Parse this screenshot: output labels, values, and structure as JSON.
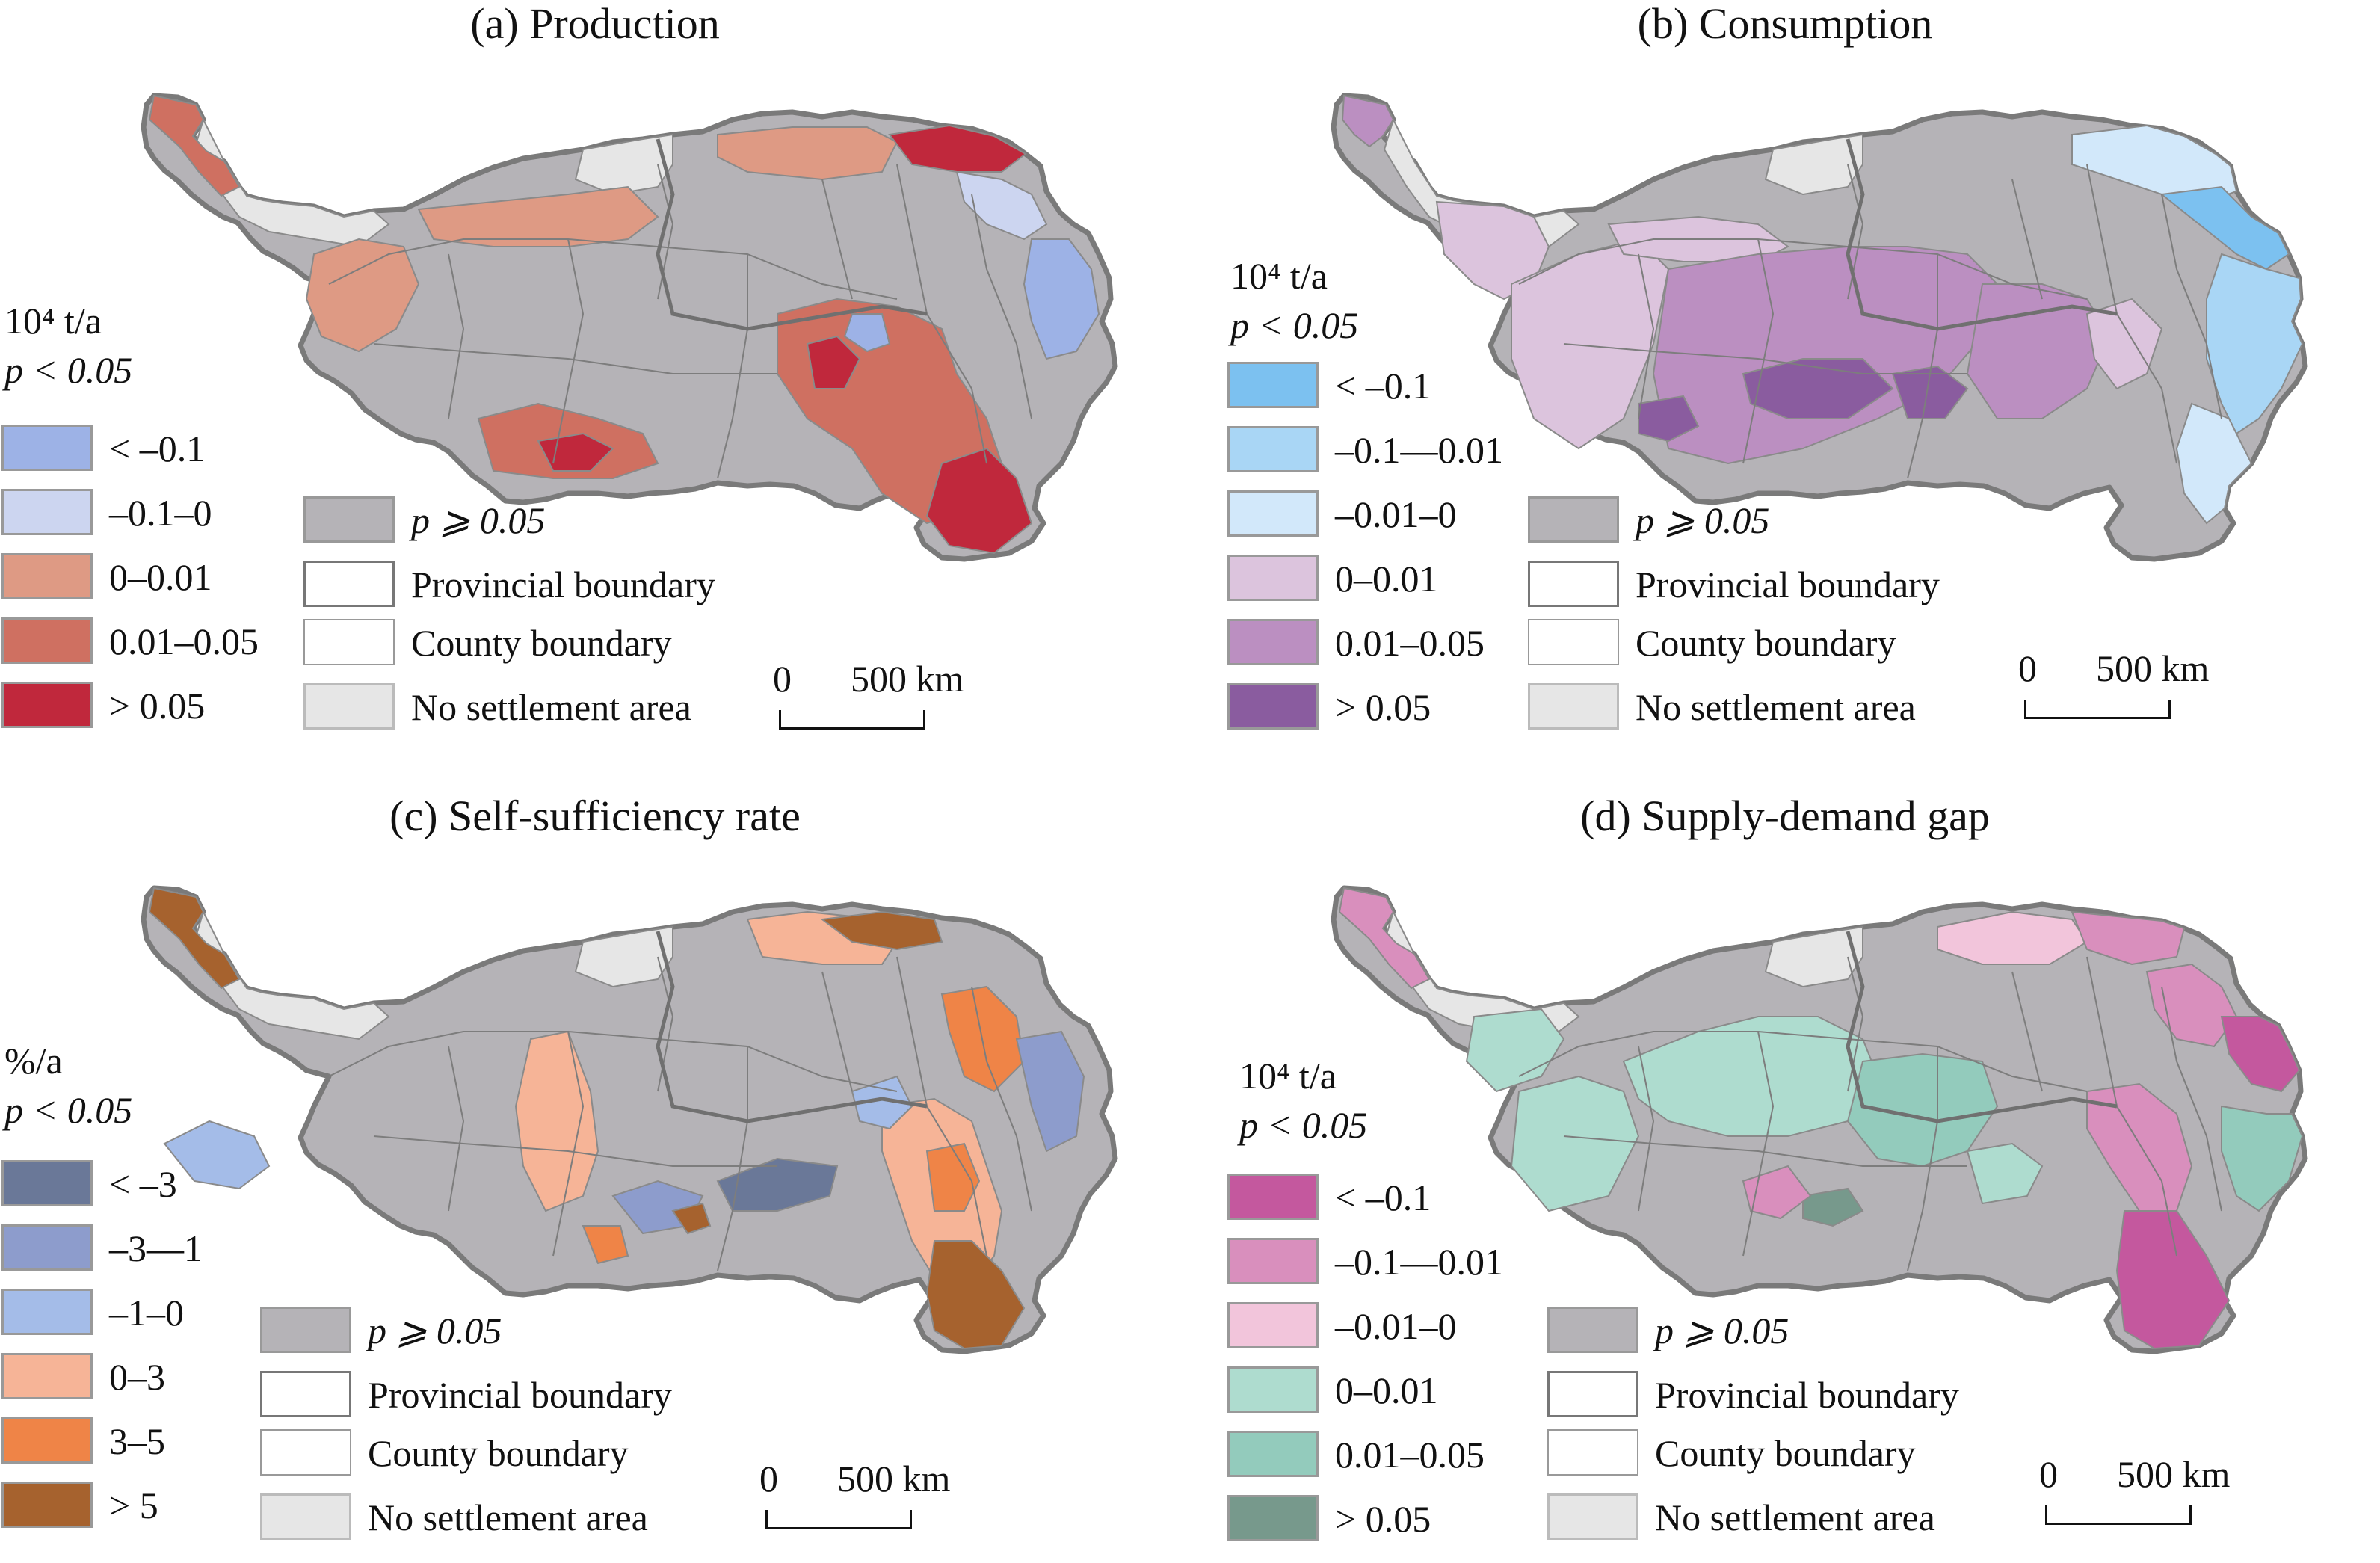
{
  "colors": {
    "not_significant": "#b5b3b7",
    "no_settlement": "#e6e6e6",
    "boundary": "#7a7a7a"
  },
  "scalebar": {
    "zero": "0",
    "distance": "500 km"
  },
  "panels": [
    {
      "title": "(a) Production",
      "unit": "10⁴ t/a",
      "significance": "p < 0.05",
      "classes": [
        {
          "label": "< –0.1",
          "color": "#9db2e6"
        },
        {
          "label": "–0.1–0",
          "color": "#ccd5f0"
        },
        {
          "label": "0–0.01",
          "color": "#de9a84"
        },
        {
          "label": "0.01–0.05",
          "color": "#cf7061"
        },
        {
          "label": "> 0.05",
          "color": "#c0283c"
        }
      ],
      "other_legend": [
        {
          "label": "p ⩾ 0.05",
          "kind": "not_significant"
        },
        {
          "label": "Provincial boundary",
          "kind": "provincial"
        },
        {
          "label": "County boundary",
          "kind": "county"
        },
        {
          "label": "No settlement area",
          "kind": "no_settlement"
        }
      ]
    },
    {
      "title": "(b) Consumption",
      "unit": "10⁴ t/a",
      "significance": "p < 0.05",
      "classes": [
        {
          "label": "< –0.1",
          "color": "#7cc1f0"
        },
        {
          "label": "–0.1––0.01",
          "color": "#a9d6f5"
        },
        {
          "label": "–0.01–0",
          "color": "#d2e8fa"
        },
        {
          "label": "0–0.01",
          "color": "#dcc4dd"
        },
        {
          "label": "0.01–0.05",
          "color": "#bb8fc1"
        },
        {
          "label": "> 0.05",
          "color": "#8a5c9f"
        }
      ],
      "other_legend": [
        {
          "label": "p ⩾ 0.05",
          "kind": "not_significant"
        },
        {
          "label": "Provincial boundary",
          "kind": "provincial"
        },
        {
          "label": "County boundary",
          "kind": "county"
        },
        {
          "label": "No settlement area",
          "kind": "no_settlement"
        }
      ]
    },
    {
      "title": "(c) Self-sufficiency rate",
      "unit": "%/a",
      "significance": "p < 0.05",
      "classes": [
        {
          "label": "< –3",
          "color": "#6a7898"
        },
        {
          "label": "–3––1",
          "color": "#8d9ccc"
        },
        {
          "label": "–1–0",
          "color": "#a4bce8"
        },
        {
          "label": "0–3",
          "color": "#f6b497"
        },
        {
          "label": "3–5",
          "color": "#ef8447"
        },
        {
          "label": "> 5",
          "color": "#a6622e"
        }
      ],
      "other_legend": [
        {
          "label": "p ⩾ 0.05",
          "kind": "not_significant"
        },
        {
          "label": "Provincial boundary",
          "kind": "provincial"
        },
        {
          "label": "County boundary",
          "kind": "county"
        },
        {
          "label": "No settlement area",
          "kind": "no_settlement"
        }
      ]
    },
    {
      "title": "(d) Supply-demand gap",
      "unit": "10⁴ t/a",
      "significance": "p < 0.05",
      "classes": [
        {
          "label": "< –0.1",
          "color": "#c4589e"
        },
        {
          "label": "–0.1––0.01",
          "color": "#d98fbd"
        },
        {
          "label": "–0.01–0",
          "color": "#f2c5db"
        },
        {
          "label": "0–0.01",
          "color": "#aedccf"
        },
        {
          "label": "0.01–0.05",
          "color": "#93cbbc"
        },
        {
          "label": "> 0.05",
          "color": "#77998c"
        }
      ],
      "other_legend": [
        {
          "label": "p ⩾ 0.05",
          "kind": "not_significant"
        },
        {
          "label": "Provincial boundary",
          "kind": "provincial"
        },
        {
          "label": "County boundary",
          "kind": "county"
        },
        {
          "label": "No settlement area",
          "kind": "no_settlement"
        }
      ]
    }
  ]
}
